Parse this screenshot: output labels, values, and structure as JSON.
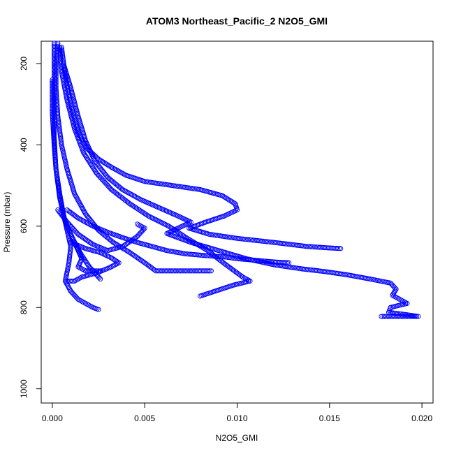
{
  "chart_data": {
    "type": "scatter",
    "title": "ATOM3 Northeast_Pacific_2 N2O5_GMI",
    "xlabel": "N2O5_GMI",
    "ylabel": "Pressure (mbar)",
    "xlim": [
      -0.0006,
      0.0206
    ],
    "ylim": [
      1035,
      145
    ],
    "y_reversed": true,
    "grid": false,
    "marker": "open-circle",
    "color": "#0000ff",
    "x_ticks": [
      {
        "value": 0.0,
        "label": "0.000"
      },
      {
        "value": 0.005,
        "label": "0.005"
      },
      {
        "value": 0.01,
        "label": "0.010"
      },
      {
        "value": 0.015,
        "label": "0.015"
      },
      {
        "value": 0.02,
        "label": "0.020"
      }
    ],
    "y_ticks": [
      {
        "value": 200,
        "label": "200"
      },
      {
        "value": 400,
        "label": "400"
      },
      {
        "value": 600,
        "label": "600"
      },
      {
        "value": 800,
        "label": "800"
      },
      {
        "value": 1000,
        "label": "1000"
      }
    ],
    "series": [
      {
        "points": [
          [
            0.0003,
            150
          ],
          [
            0.0002,
            200
          ],
          [
            0.0002,
            260
          ],
          [
            0.0003,
            330
          ],
          [
            0.0005,
            400
          ],
          [
            0.0008,
            460
          ],
          [
            0.0012,
            520
          ],
          [
            0.0018,
            570
          ],
          [
            0.0025,
            610
          ],
          [
            0.0033,
            640
          ],
          [
            0.0042,
            665
          ],
          [
            0.005,
            690
          ],
          [
            0.0056,
            710
          ],
          [
            0.0066,
            710
          ],
          [
            0.0078,
            710
          ],
          [
            0.0086,
            710
          ]
        ]
      },
      {
        "points": [
          [
            0.0004,
            160
          ],
          [
            0.0005,
            220
          ],
          [
            0.0008,
            290
          ],
          [
            0.0012,
            360
          ],
          [
            0.0017,
            420
          ],
          [
            0.0024,
            470
          ],
          [
            0.0032,
            510
          ],
          [
            0.0042,
            545
          ],
          [
            0.0052,
            575
          ],
          [
            0.0063,
            600
          ],
          [
            0.0073,
            630
          ],
          [
            0.0084,
            660
          ],
          [
            0.0094,
            695
          ],
          [
            0.0103,
            725
          ],
          [
            0.0107,
            735
          ],
          [
            0.0098,
            745
          ],
          [
            0.0088,
            760
          ],
          [
            0.008,
            772
          ]
        ]
      },
      {
        "points": [
          [
            0.0005,
            160
          ],
          [
            0.0007,
            230
          ],
          [
            0.001,
            300
          ],
          [
            0.0014,
            370
          ],
          [
            0.0019,
            410
          ],
          [
            0.0025,
            435
          ],
          [
            0.0032,
            455
          ],
          [
            0.004,
            475
          ],
          [
            0.005,
            490
          ],
          [
            0.0065,
            500
          ],
          [
            0.008,
            510
          ],
          [
            0.0092,
            525
          ],
          [
            0.0099,
            545
          ],
          [
            0.01,
            560
          ],
          [
            0.0093,
            575
          ],
          [
            0.0083,
            590
          ],
          [
            0.0074,
            605
          ],
          [
            0.0085,
            620
          ],
          [
            0.01,
            630
          ],
          [
            0.012,
            640
          ],
          [
            0.0138,
            650
          ],
          [
            0.0148,
            653
          ],
          [
            0.0156,
            655
          ]
        ]
      },
      {
        "points": [
          [
            0.0006,
            200
          ],
          [
            0.001,
            260
          ],
          [
            0.0014,
            330
          ],
          [
            0.0018,
            390
          ],
          [
            0.0023,
            440
          ],
          [
            0.003,
            480
          ],
          [
            0.0038,
            510
          ],
          [
            0.0048,
            535
          ],
          [
            0.0058,
            555
          ],
          [
            0.0068,
            575
          ],
          [
            0.0075,
            590
          ],
          [
            0.0068,
            605
          ],
          [
            0.0062,
            618
          ],
          [
            0.0075,
            640
          ],
          [
            0.009,
            660
          ],
          [
            0.0105,
            680
          ],
          [
            0.012,
            695
          ],
          [
            0.0135,
            705
          ],
          [
            0.0148,
            712
          ],
          [
            0.016,
            720
          ],
          [
            0.0172,
            730
          ],
          [
            0.0183,
            740
          ],
          [
            0.0186,
            755
          ],
          [
            0.0184,
            770
          ],
          [
            0.0188,
            780
          ],
          [
            0.0192,
            790
          ],
          [
            0.0183,
            800
          ],
          [
            0.0182,
            812
          ],
          [
            0.0192,
            818
          ],
          [
            0.0198,
            822
          ],
          [
            0.0188,
            822
          ],
          [
            0.0178,
            822
          ]
        ]
      },
      {
        "points": [
          [
            0.0,
            240
          ],
          [
            0.0,
            320
          ],
          [
            0.0001,
            400
          ],
          [
            0.0002,
            460
          ],
          [
            0.0004,
            520
          ],
          [
            0.0006,
            570
          ],
          [
            0.0008,
            610
          ],
          [
            0.001,
            650
          ],
          [
            0.0009,
            690
          ],
          [
            0.0007,
            735
          ],
          [
            0.001,
            760
          ],
          [
            0.0014,
            780
          ],
          [
            0.0018,
            790
          ],
          [
            0.0022,
            800
          ],
          [
            0.0025,
            805
          ]
        ]
      },
      {
        "points": [
          [
            0.0008,
            560
          ],
          [
            0.0014,
            580
          ],
          [
            0.0022,
            600
          ],
          [
            0.003,
            615
          ],
          [
            0.0038,
            628
          ],
          [
            0.0046,
            640
          ],
          [
            0.0054,
            650
          ],
          [
            0.0062,
            660
          ],
          [
            0.0072,
            668
          ],
          [
            0.0082,
            672
          ],
          [
            0.0094,
            676
          ],
          [
            0.01,
            680
          ],
          [
            0.011,
            684
          ],
          [
            0.012,
            688
          ],
          [
            0.0128,
            690
          ]
        ]
      },
      {
        "points": [
          [
            0.0008,
            600
          ],
          [
            0.0012,
            640
          ],
          [
            0.0016,
            680
          ],
          [
            0.0014,
            700
          ],
          [
            0.0018,
            710
          ],
          [
            0.0024,
            710
          ],
          [
            0.0026,
            710
          ]
        ]
      },
      {
        "points": [
          [
            0.0003,
            560
          ],
          [
            0.0008,
            590
          ],
          [
            0.0014,
            620
          ],
          [
            0.0022,
            645
          ],
          [
            0.003,
            660
          ],
          [
            0.0038,
            650
          ],
          [
            0.0042,
            638
          ],
          [
            0.0046,
            625
          ],
          [
            0.005,
            605
          ],
          [
            0.0046,
            595
          ]
        ]
      },
      {
        "points": [
          [
            0.001,
            640
          ],
          [
            0.0018,
            655
          ],
          [
            0.0026,
            665
          ],
          [
            0.0032,
            678
          ],
          [
            0.0036,
            690
          ],
          [
            0.0031,
            702
          ],
          [
            0.0024,
            715
          ],
          [
            0.0016,
            725
          ],
          [
            0.0012,
            735
          ],
          [
            0.0008,
            735
          ]
        ]
      },
      {
        "points": [
          [
            0.0001,
            150
          ],
          [
            0.0001,
            220
          ],
          [
            0.0001,
            300
          ],
          [
            0.0001,
            380
          ],
          [
            0.0002,
            460
          ],
          [
            0.0004,
            530
          ],
          [
            0.0007,
            590
          ],
          [
            0.0011,
            630
          ],
          [
            0.0015,
            665
          ],
          [
            0.002,
            700
          ],
          [
            0.0026,
            730
          ]
        ]
      }
    ]
  }
}
